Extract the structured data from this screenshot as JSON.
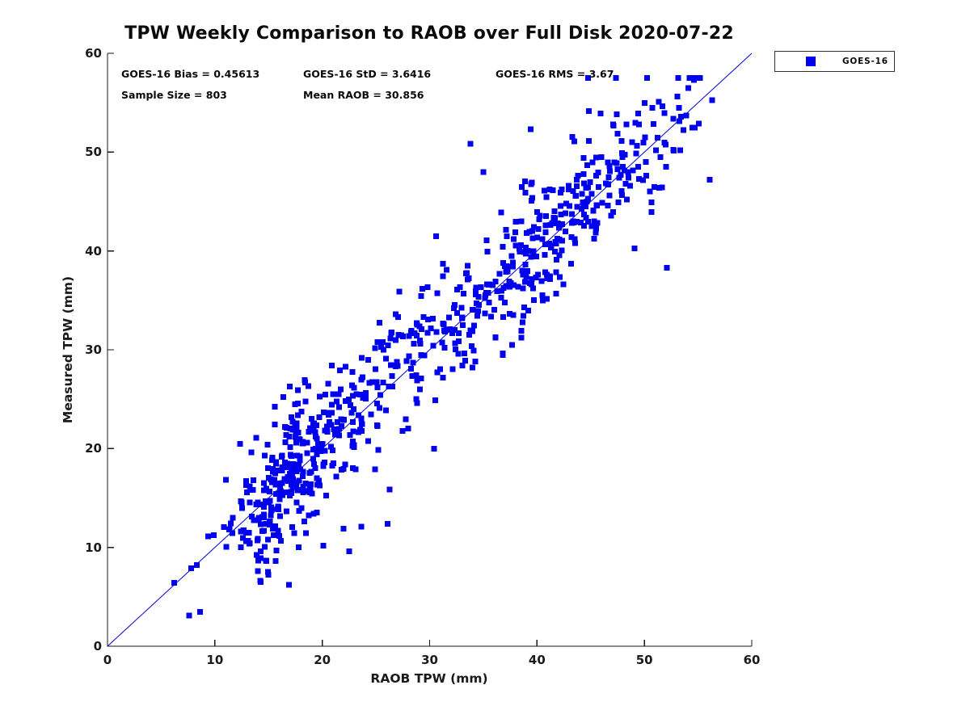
{
  "title": "TPW Weekly Comparison to RAOB over Full Disk 2020-07-22",
  "stats": {
    "bias_label": "GOES-16 Bias = 0.45613",
    "std_label": "GOES-16 StD = 3.6416",
    "rms_label": "GOES-16 RMS = 3.67",
    "sample_label": "Sample Size = 803",
    "mean_raob_label": "Mean RAOB = 30.856"
  },
  "legend": {
    "label": "GOES-16",
    "marker_color": "#0000ee"
  },
  "axes": {
    "xlabel": "RAOB TPW (mm)",
    "ylabel": "Measured TPW (mm)",
    "xticks": [
      0,
      10,
      20,
      30,
      40,
      50,
      60
    ],
    "yticks": [
      0,
      10,
      20,
      30,
      40,
      50,
      60
    ],
    "axis_color": "#1a1a1a"
  },
  "chart_data": {
    "type": "scatter",
    "title": "TPW Weekly Comparison to RAOB over Full Disk 2020-07-22",
    "xlabel": "RAOB TPW (mm)",
    "ylabel": "Measured TPW (mm)",
    "xlim": [
      0,
      60
    ],
    "ylim": [
      0,
      60
    ],
    "grid": false,
    "legend_position": "outside-top-right",
    "series": [
      {
        "name": "GOES-16",
        "marker": "filled-square",
        "marker_size_px": 7,
        "color": "#0000ee",
        "n": 803,
        "stats": {
          "bias": 0.45613,
          "std": 3.6416,
          "rms": 3.67,
          "sample_size": 803,
          "mean_raob": 30.856
        }
      }
    ],
    "identity_line": {
      "from": [
        0,
        0
      ],
      "to": [
        60,
        60
      ],
      "color": "#0000dd",
      "width": 1
    },
    "notable_points": [
      [
        6.2,
        6.4
      ],
      [
        7.6,
        3.1
      ],
      [
        7.8,
        7.9
      ],
      [
        14.0,
        7.6
      ],
      [
        16.9,
        6.2
      ],
      [
        22.0,
        11.9
      ],
      [
        26.1,
        12.4
      ],
      [
        30.4,
        20.0
      ],
      [
        30.6,
        41.5
      ],
      [
        35.0,
        48.0
      ],
      [
        52.1,
        38.3
      ],
      [
        56.1,
        47.2
      ],
      [
        54.6,
        57.3
      ],
      [
        54.1,
        56.5
      ],
      [
        53.4,
        53.6
      ],
      [
        47.1,
        52.8
      ]
    ],
    "generator": {
      "seed": 20200722,
      "bias": 0.45613,
      "noise_std": 3.35,
      "heavy_tail_prob": 0.06,
      "heavy_tail_scale": 1.9,
      "x_clamp": [
        5.8,
        56.3
      ],
      "y_clamp": [
        2.9,
        57.5
      ],
      "components": [
        {
          "m": 16.5,
          "s": 2.6,
          "w": 0.27
        },
        {
          "m": 21.5,
          "s": 2.9,
          "w": 0.16
        },
        {
          "m": 28.5,
          "s": 3.4,
          "w": 0.13
        },
        {
          "m": 36.5,
          "s": 3.0,
          "w": 0.14
        },
        {
          "m": 41.5,
          "s": 3.1,
          "w": 0.17
        },
        {
          "m": 47.0,
          "s": 2.8,
          "w": 0.1
        },
        {
          "m": 52.5,
          "s": 1.8,
          "w": 0.03
        }
      ]
    }
  }
}
